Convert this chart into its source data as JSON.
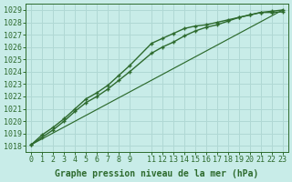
{
  "xlabel": "Graphe pression niveau de la mer (hPa)",
  "background_color": "#c8ece8",
  "grid_color": "#b0d8d4",
  "line_color": "#2d6a2d",
  "ylim": [
    1017.5,
    1029.5
  ],
  "xlim": [
    -0.5,
    23.5
  ],
  "yticks": [
    1018,
    1019,
    1020,
    1021,
    1022,
    1023,
    1024,
    1025,
    1026,
    1027,
    1028,
    1029
  ],
  "xtick_vals": [
    0,
    1,
    2,
    3,
    4,
    5,
    6,
    7,
    8,
    9,
    11,
    12,
    13,
    14,
    15,
    16,
    17,
    18,
    19,
    20,
    21,
    22,
    23
  ],
  "xtick_labels": [
    "0",
    "1",
    "2",
    "3",
    "4",
    "5",
    "6",
    "7",
    "8",
    "9",
    "11",
    "12",
    "13",
    "14",
    "15",
    "16",
    "17",
    "18",
    "19",
    "20",
    "21",
    "22",
    "23"
  ],
  "series1_x": [
    0,
    1,
    2,
    3,
    4,
    5,
    6,
    7,
    8,
    9,
    11,
    12,
    13,
    14,
    15,
    16,
    17,
    18,
    19,
    20,
    21,
    22,
    23
  ],
  "series1_y": [
    1018.1,
    1018.7,
    1019.3,
    1020.0,
    1020.8,
    1021.5,
    1022.0,
    1022.6,
    1023.3,
    1024.0,
    1025.5,
    1026.0,
    1026.4,
    1026.9,
    1027.3,
    1027.6,
    1027.8,
    1028.1,
    1028.4,
    1028.6,
    1028.8,
    1028.9,
    1029.0
  ],
  "series2_x": [
    0,
    1,
    2,
    3,
    4,
    5,
    6,
    7,
    8,
    9,
    11,
    12,
    13,
    14,
    15,
    16,
    17,
    18,
    19,
    20,
    21,
    22,
    23
  ],
  "series2_y": [
    1018.1,
    1018.9,
    1019.5,
    1020.2,
    1021.0,
    1021.8,
    1022.3,
    1022.9,
    1023.7,
    1024.5,
    1026.3,
    1026.7,
    1027.1,
    1027.5,
    1027.7,
    1027.8,
    1028.0,
    1028.2,
    1028.4,
    1028.6,
    1028.8,
    1028.8,
    1028.85
  ],
  "series3_x": [
    0,
    23
  ],
  "series3_y": [
    1018.1,
    1029.0
  ],
  "markersize": 3.5,
  "linewidth": 1.0,
  "fontsize_xlabel": 7,
  "fontsize_ticks": 6
}
